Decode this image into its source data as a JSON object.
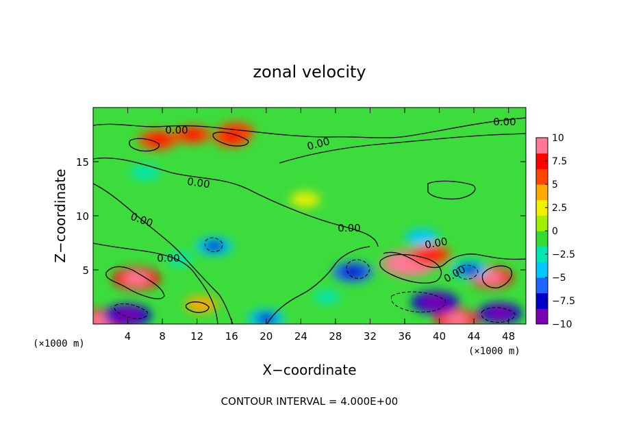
{
  "chart_data": {
    "type": "heatmap",
    "title": "zonal velocity",
    "xlabel": "X−coordinate",
    "ylabel": "Z−coordinate",
    "x_unit": "(×1000 m)",
    "y_unit": "(×1000 m)",
    "xlim": [
      0,
      50
    ],
    "ylim": [
      0,
      20
    ],
    "x_ticks": [
      4,
      8,
      12,
      16,
      20,
      24,
      28,
      32,
      36,
      40,
      44,
      48
    ],
    "y_ticks": [
      5,
      10,
      15
    ],
    "colorbar": {
      "ticks": [
        10,
        7.5,
        5,
        2.5,
        0,
        -2.5,
        -5,
        -7.5,
        -10
      ],
      "tick_labels": [
        "10",
        "7.5",
        "5",
        "2.5",
        "0",
        "−2.5",
        "−5",
        "−7.5",
        "−10"
      ],
      "range": [
        -10,
        10
      ],
      "colors": [
        "#7b00b4",
        "#0000c8",
        "#1e64ff",
        "#00c8ff",
        "#00e6b4",
        "#32dc32",
        "#a0f000",
        "#f0f000",
        "#ffaa00",
        "#ff4600",
        "#ff0000",
        "#ff7896"
      ]
    },
    "contour_labels": [
      "0.00",
      "0.00",
      "0.00",
      "0.00",
      "0.00",
      "0.00",
      "0.00",
      "0.00",
      "0.00"
    ],
    "footer": "CONTOUR INTERVAL = 4.000E+00",
    "field_background": "#3cdc3c",
    "features": [
      {
        "x": 1.0,
        "z": 0.3,
        "value": 8
      },
      {
        "x": 5.0,
        "z": 4.2,
        "value": 8
      },
      {
        "x": 7.5,
        "z": 17.0,
        "value": 6
      },
      {
        "x": 11.5,
        "z": 17.5,
        "value": 5
      },
      {
        "x": 16.5,
        "z": 17.8,
        "value": 5
      },
      {
        "x": 16.0,
        "z": 17.2,
        "value": 5
      },
      {
        "x": 36.5,
        "z": 5.6,
        "value": 10
      },
      {
        "x": 39.0,
        "z": 6.4,
        "value": 6
      },
      {
        "x": 46.0,
        "z": 4.3,
        "value": 7
      },
      {
        "x": 42.0,
        "z": 0.4,
        "value": 7
      },
      {
        "x": 12.5,
        "z": 1.8,
        "value": 4
      },
      {
        "x": 4.0,
        "z": 0.8,
        "value": -8
      },
      {
        "x": 14.0,
        "z": 7.2,
        "value": -5
      },
      {
        "x": 30.0,
        "z": 4.8,
        "value": -6
      },
      {
        "x": 39.5,
        "z": 2.0,
        "value": -8
      },
      {
        "x": 47.0,
        "z": 1.0,
        "value": -7
      },
      {
        "x": 43.5,
        "z": 5.0,
        "value": -5
      },
      {
        "x": 20.0,
        "z": 0.5,
        "value": -5
      },
      {
        "x": 6.0,
        "z": 14.0,
        "value": -3
      },
      {
        "x": 24.5,
        "z": 11.5,
        "value": 3
      },
      {
        "x": 38.0,
        "z": 8.0,
        "value": -4
      },
      {
        "x": 10.0,
        "z": 6.0,
        "value": -2
      },
      {
        "x": 27.0,
        "z": 2.5,
        "value": -2
      }
    ]
  }
}
